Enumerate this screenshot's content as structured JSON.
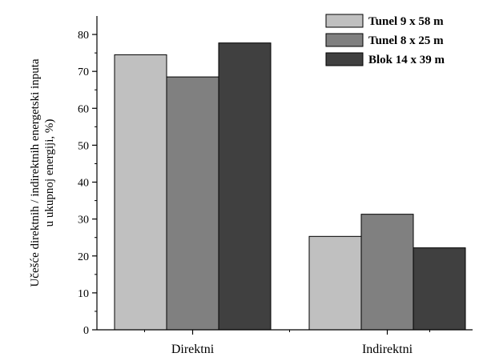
{
  "chart_data": {
    "type": "bar",
    "categories": [
      "Direktni",
      "Indirektni"
    ],
    "series": [
      {
        "name": "Tunel 9 x 58 m",
        "values": [
          74.5,
          25.3
        ],
        "color": "#c0c0c0"
      },
      {
        "name": "Tunel 8 x 25 m",
        "values": [
          68.5,
          31.3
        ],
        "color": "#808080"
      },
      {
        "name": "Blok 14 x 39 m",
        "values": [
          77.7,
          22.2
        ],
        "color": "#404040"
      }
    ],
    "title": "",
    "xlabel": "",
    "ylabel_lines": [
      "Učešće direktnih / indirektnih energetski inputa",
      "u ukupnoj energiji, %)"
    ],
    "ylim": [
      0,
      85
    ],
    "yticks": [
      0,
      10,
      20,
      30,
      40,
      50,
      60,
      70,
      80
    ],
    "grid": false,
    "legend_position": "top-right"
  }
}
